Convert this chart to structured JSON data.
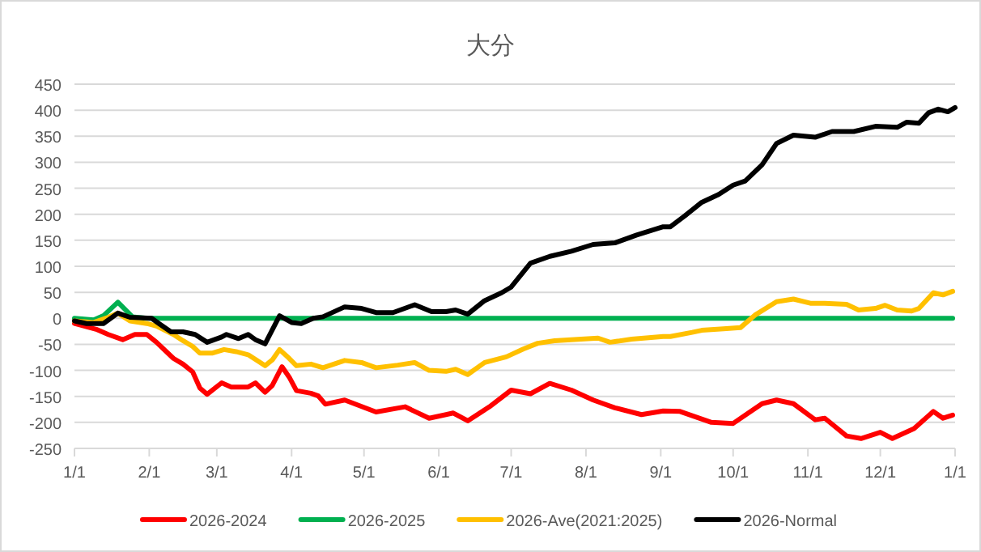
{
  "chart_data": {
    "type": "line",
    "title": "大分",
    "xlim": [
      "2026-01-01",
      "2027-01-01"
    ],
    "xticks": [
      {
        "value": "2026-01-01",
        "label": "1/1"
      },
      {
        "value": "2026-02-01",
        "label": "2/1"
      },
      {
        "value": "2026-03-01",
        "label": "3/1"
      },
      {
        "value": "2026-04-01",
        "label": "4/1"
      },
      {
        "value": "2026-05-01",
        "label": "5/1"
      },
      {
        "value": "2026-06-01",
        "label": "6/1"
      },
      {
        "value": "2026-07-01",
        "label": "7/1"
      },
      {
        "value": "2026-08-01",
        "label": "8/1"
      },
      {
        "value": "2026-09-01",
        "label": "9/1"
      },
      {
        "value": "2026-10-01",
        "label": "10/1"
      },
      {
        "value": "2026-11-01",
        "label": "11/1"
      },
      {
        "value": "2026-12-01",
        "label": "12/1"
      },
      {
        "value": "2027-01-01",
        "label": "1/1"
      }
    ],
    "ylim": [
      -250,
      450
    ],
    "yticks": [
      -250,
      -200,
      -150,
      -100,
      -50,
      0,
      50,
      100,
      150,
      200,
      250,
      300,
      350,
      400,
      450
    ],
    "grid": "y",
    "legend": "bottom",
    "line_style": "solid",
    "marker": "none",
    "series": [
      {
        "name": "2026-2024",
        "color": "#ff0000",
        "x": [
          "2026-01-01",
          "2026-01-10",
          "2026-01-15",
          "2026-01-21",
          "2026-01-26",
          "2026-01-31",
          "2026-02-04",
          "2026-02-11",
          "2026-02-15",
          "2026-02-19",
          "2026-02-22",
          "2026-02-25",
          "2026-03-03",
          "2026-03-07",
          "2026-03-14",
          "2026-03-17",
          "2026-03-21",
          "2026-03-24",
          "2026-03-28",
          "2026-03-31",
          "2026-04-03",
          "2026-04-09",
          "2026-04-12",
          "2026-04-15",
          "2026-04-23",
          "2026-05-06",
          "2026-05-18",
          "2026-05-28",
          "2026-06-07",
          "2026-06-13",
          "2026-06-22",
          "2026-07-01",
          "2026-07-09",
          "2026-07-17",
          "2026-07-26",
          "2026-08-04",
          "2026-08-13",
          "2026-08-24",
          "2026-09-02",
          "2026-09-09",
          "2026-09-22",
          "2026-10-01",
          "2026-10-13",
          "2026-10-19",
          "2026-10-26",
          "2026-11-04",
          "2026-11-08",
          "2026-11-17",
          "2026-11-23",
          "2026-12-01",
          "2026-12-06",
          "2026-12-15",
          "2026-12-23",
          "2026-12-27",
          "2026-12-31"
        ],
        "values": [
          -10,
          -21,
          -31,
          -41,
          -31,
          -31,
          -46,
          -77,
          -88,
          -103,
          -134,
          -146,
          -124,
          -132,
          -132,
          -124,
          -142,
          -129,
          -93,
          -113,
          -139,
          -144,
          -149,
          -165,
          -157,
          -180,
          -170,
          -192,
          -182,
          -197,
          -170,
          -138,
          -145,
          -125,
          -138,
          -157,
          -172,
          -185,
          -178,
          -179,
          -200,
          -202,
          -164,
          -157,
          -164,
          -195,
          -192,
          -226,
          -231,
          -219,
          -231,
          -212,
          -179,
          -192,
          -186
        ]
      },
      {
        "name": "2026-2025",
        "color": "#00b050",
        "x": [
          "2026-01-01",
          "2026-01-09",
          "2026-01-13",
          "2026-01-19",
          "2026-01-25",
          "2026-01-31",
          "2026-12-31"
        ],
        "values": [
          0,
          -3,
          5,
          31,
          3,
          0,
          0
        ]
      },
      {
        "name": "2026-Ave(2021:2025)",
        "color": "#ffc000",
        "x": [
          "2026-01-01",
          "2026-01-09",
          "2026-01-15",
          "2026-01-19",
          "2026-01-24",
          "2026-01-31",
          "2026-02-04",
          "2026-02-11",
          "2026-02-15",
          "2026-02-19",
          "2026-02-22",
          "2026-02-27",
          "2026-03-04",
          "2026-03-09",
          "2026-03-14",
          "2026-03-21",
          "2026-03-24",
          "2026-03-27",
          "2026-03-31",
          "2026-04-03",
          "2026-04-09",
          "2026-04-14",
          "2026-04-23",
          "2026-04-30",
          "2026-05-06",
          "2026-05-15",
          "2026-05-22",
          "2026-05-28",
          "2026-06-04",
          "2026-06-08",
          "2026-06-13",
          "2026-06-20",
          "2026-06-29",
          "2026-07-06",
          "2026-07-12",
          "2026-07-19",
          "2026-07-30",
          "2026-08-06",
          "2026-08-11",
          "2026-08-20",
          "2026-09-02",
          "2026-09-05",
          "2026-09-14",
          "2026-09-18",
          "2026-09-27",
          "2026-10-04",
          "2026-10-10",
          "2026-10-19",
          "2026-10-26",
          "2026-11-02",
          "2026-11-08",
          "2026-11-17",
          "2026-11-22",
          "2026-11-29",
          "2026-12-03",
          "2026-12-08",
          "2026-12-14",
          "2026-12-17",
          "2026-12-23",
          "2026-12-27",
          "2026-12-31"
        ],
        "values": [
          -5,
          -8,
          2,
          10,
          -5,
          -10,
          -15,
          -31,
          -43,
          -54,
          -67,
          -67,
          -60,
          -64,
          -70,
          -91,
          -80,
          -60,
          -77,
          -91,
          -88,
          -95,
          -81,
          -85,
          -95,
          -90,
          -85,
          -100,
          -102,
          -98,
          -108,
          -85,
          -74,
          -59,
          -48,
          -43,
          -40,
          -38,
          -46,
          -40,
          -35,
          -35,
          -27,
          -23,
          -20,
          -18,
          6,
          32,
          37,
          29,
          29,
          27,
          16,
          19,
          25,
          16,
          14,
          19,
          49,
          45,
          52
        ]
      },
      {
        "name": "2026-Normal",
        "color": "#000000",
        "x": [
          "2026-01-01",
          "2026-01-06",
          "2026-01-13",
          "2026-01-19",
          "2026-01-24",
          "2026-02-02",
          "2026-02-05",
          "2026-02-10",
          "2026-02-15",
          "2026-02-20",
          "2026-02-25",
          "2026-03-03",
          "2026-03-05",
          "2026-03-10",
          "2026-03-14",
          "2026-03-17",
          "2026-03-21",
          "2026-03-27",
          "2026-04-01",
          "2026-04-05",
          "2026-04-10",
          "2026-04-14",
          "2026-04-23",
          "2026-04-30",
          "2026-05-06",
          "2026-05-13",
          "2026-05-22",
          "2026-05-29",
          "2026-06-04",
          "2026-06-08",
          "2026-06-13",
          "2026-06-20",
          "2026-06-27",
          "2026-07-01",
          "2026-07-09",
          "2026-07-17",
          "2026-07-26",
          "2026-08-04",
          "2026-08-13",
          "2026-08-22",
          "2026-09-02",
          "2026-09-05",
          "2026-09-11",
          "2026-09-18",
          "2026-09-25",
          "2026-10-01",
          "2026-10-06",
          "2026-10-13",
          "2026-10-19",
          "2026-10-26",
          "2026-11-04",
          "2026-11-11",
          "2026-11-20",
          "2026-11-29",
          "2026-12-08",
          "2026-12-12",
          "2026-12-17",
          "2026-12-21",
          "2026-12-25",
          "2026-12-29",
          "2027-01-01"
        ],
        "values": [
          -5,
          -10,
          -10,
          10,
          2,
          0,
          -10,
          -26,
          -26,
          -31,
          -46,
          -36,
          -31,
          -39,
          -31,
          -41,
          -49,
          5,
          -8,
          -10,
          0,
          3,
          22,
          19,
          11,
          11,
          26,
          13,
          13,
          16,
          8,
          34,
          49,
          60,
          106,
          119,
          129,
          142,
          145,
          160,
          176,
          176,
          197,
          223,
          238,
          256,
          264,
          295,
          336,
          352,
          348,
          359,
          359,
          369,
          367,
          377,
          375,
          395,
          402,
          397,
          405
        ]
      }
    ]
  }
}
